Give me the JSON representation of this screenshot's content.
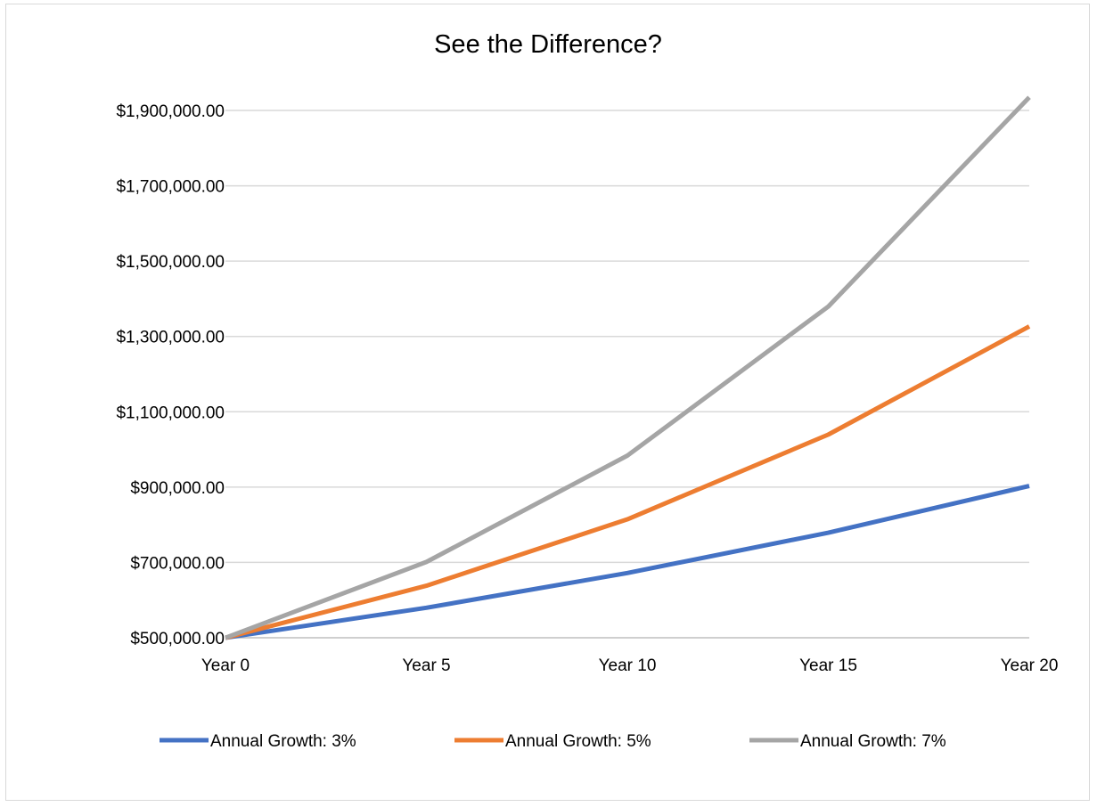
{
  "chart_data": {
    "type": "line",
    "title": "See the Difference?",
    "xlabel": "",
    "ylabel": "",
    "categories": [
      "Year 0",
      "Year 5",
      "Year 10",
      "Year 15",
      "Year 20"
    ],
    "y_ticks": [
      "$500,000.00",
      "$700,000.00",
      "$900,000.00",
      "$1,100,000.00",
      "$1,300,000.00",
      "$1,500,000.00",
      "$1,700,000.00",
      "$1,900,000.00"
    ],
    "y_tick_values": [
      500000,
      700000,
      900000,
      1100000,
      1300000,
      1500000,
      1700000,
      1900000
    ],
    "ylim": [
      500000,
      1900000
    ],
    "grid": "horizontal",
    "legend_position": "bottom",
    "series": [
      {
        "name": "Annual Growth: 3%",
        "color": "#4472c4",
        "values": [
          500000,
          579637,
          671958,
          778984,
          903056
        ]
      },
      {
        "name": "Annual Growth: 5%",
        "color": "#ed7d31",
        "values": [
          500000,
          638141,
          814447,
          1039464,
          1326649
        ]
      },
      {
        "name": "Annual Growth: 7%",
        "color": "#a5a5a5",
        "values": [
          500000,
          701276,
          983576,
          1379516,
          1934842
        ]
      }
    ]
  }
}
